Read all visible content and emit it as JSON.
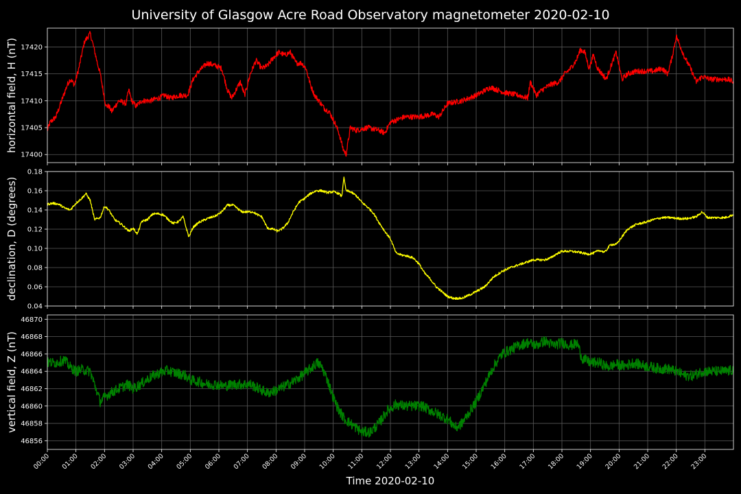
{
  "chart_data": {
    "type": "line",
    "title": "University of Glasgow Acre Road Observatory magnetometer 2020-02-10",
    "xlabel": "Time 2020-02-10",
    "x_ticks": [
      "00:00",
      "01:00",
      "02:00",
      "03:00",
      "04:00",
      "05:00",
      "06:00",
      "07:00",
      "08:00",
      "09:00",
      "10:00",
      "11:00",
      "12:00",
      "13:00",
      "14:00",
      "15:00",
      "16:00",
      "17:00",
      "18:00",
      "19:00",
      "20:00",
      "21:00",
      "22:00",
      "23:00"
    ],
    "xlim_hours": [
      0,
      24
    ],
    "grid": true,
    "panels": [
      {
        "ylabel": "horizontal field, H (nT)",
        "color": "#ff0000",
        "ylim": [
          17398.5,
          17423.5
        ],
        "yticks": [
          17400,
          17405,
          17410,
          17415,
          17420
        ],
        "ytick_labels": [
          "17400",
          "17405",
          "17410",
          "17415",
          "17420"
        ],
        "noise": 0.5,
        "series": [
          {
            "x": [
              0,
              0.1,
              0.3,
              0.5,
              0.7,
              0.8,
              0.95,
              1.1,
              1.3,
              1.5,
              1.62,
              1.75,
              1.85,
              1.95,
              2.05,
              2.15,
              2.25,
              2.5,
              2.75,
              2.85,
              2.95,
              3.1,
              3.3,
              3.6,
              3.9,
              4.1,
              4.3,
              4.6,
              4.9,
              5.1,
              5.3,
              5.6,
              5.9,
              6.1,
              6.3,
              6.45,
              6.6,
              6.75,
              6.9,
              7.1,
              7.3,
              7.5,
              7.7,
              7.9,
              8.1,
              8.3,
              8.5,
              8.7,
              8.9,
              9.05,
              9.2,
              9.35,
              9.5,
              9.7,
              9.85,
              10.05,
              10.2,
              10.35,
              10.45,
              10.6,
              10.8,
              11.2,
              11.6,
              11.8,
              12.0,
              12.5,
              13.0,
              13.5,
              13.7,
              14.0,
              14.5,
              15.0,
              15.5,
              16.0,
              16.5,
              16.8,
              16.9,
              17.1,
              17.3,
              17.6,
              17.9,
              18.1,
              18.3,
              18.5,
              18.65,
              18.8,
              18.95,
              19.1,
              19.25,
              19.4,
              19.55,
              19.75,
              19.9,
              20.1,
              20.3,
              20.6,
              20.9,
              21.2,
              21.5,
              21.7,
              21.85,
              22.0,
              22.15,
              22.3,
              22.5,
              22.7,
              22.9,
              23.2,
              23.5,
              23.8,
              24.0
            ],
            "y": [
              17404.5,
              17406,
              17407,
              17410,
              17413,
              17414,
              17413,
              17416,
              17421,
              17422.5,
              17420,
              17417,
              17415,
              17412,
              17409,
              17409,
              17408,
              17410,
              17409.5,
              17412,
              17410,
              17409,
              17410,
              17410,
              17410.5,
              17411,
              17410.5,
              17411,
              17411,
              17414,
              17415.5,
              17417,
              17416.5,
              17416,
              17412,
              17410.5,
              17412,
              17413.5,
              17411,
              17415,
              17417.5,
              17416,
              17416.5,
              17418,
              17419,
              17418.5,
              17419,
              17417,
              17417,
              17416,
              17413,
              17411,
              17410,
              17408.5,
              17408,
              17406,
              17404,
              17401,
              17400,
              17405,
              17404.5,
              17405,
              17404.5,
              17404,
              17406,
              17407,
              17407,
              17407.5,
              17407,
              17409.5,
              17410,
              17411,
              17412.5,
              17411.5,
              17411,
              17410.5,
              17413.5,
              17411,
              17412,
              17413,
              17413.5,
              17415,
              17416,
              17417.5,
              17419.5,
              17419,
              17416,
              17418.5,
              17416,
              17415,
              17414,
              17417,
              17419,
              17414,
              17415,
              17415.5,
              17415.5,
              17415.5,
              17416,
              17415,
              17418,
              17422,
              17420,
              17418,
              17416,
              17413.5,
              17414.5,
              17414,
              17414,
              17414,
              17413.5
            ]
          }
        ]
      },
      {
        "ylabel": "declination, D (degrees)",
        "color": "#ffff00",
        "ylim": [
          0.04,
          0.18
        ],
        "yticks": [
          0.04,
          0.06,
          0.08,
          0.1,
          0.12,
          0.14,
          0.16,
          0.18
        ],
        "ytick_labels": [
          "0.04",
          "0.06",
          "0.08",
          "0.10",
          "0.12",
          "0.14",
          "0.16",
          "0.18"
        ],
        "noise": 0.0012,
        "series": [
          {
            "x": [
              0,
              0.2,
              0.4,
              0.6,
              0.8,
              1.0,
              1.2,
              1.35,
              1.5,
              1.65,
              1.85,
              2.0,
              2.15,
              2.35,
              2.6,
              2.85,
              3.0,
              3.15,
              3.3,
              3.5,
              3.7,
              3.9,
              4.05,
              4.2,
              4.4,
              4.6,
              4.75,
              4.85,
              4.95,
              5.1,
              5.3,
              5.6,
              5.9,
              6.1,
              6.3,
              6.5,
              6.8,
              7.0,
              7.2,
              7.35,
              7.5,
              7.7,
              7.9,
              8.05,
              8.2,
              8.4,
              8.6,
              8.8,
              9.0,
              9.2,
              9.4,
              9.6,
              9.8,
              10.0,
              10.2,
              10.3,
              10.37,
              10.45,
              10.6,
              10.8,
              11.0,
              11.2,
              11.4,
              11.6,
              11.8,
              12.0,
              12.2,
              12.4,
              12.6,
              12.8,
              13.0,
              13.2,
              13.4,
              13.6,
              13.8,
              14.0,
              14.2,
              14.5,
              14.8,
              15.0,
              15.3,
              15.6,
              15.9,
              16.2,
              16.6,
              17.0,
              17.2,
              17.4,
              17.6,
              17.8,
              18.0,
              18.3,
              18.6,
              18.9,
              19.1,
              19.3,
              19.5,
              19.7,
              19.9,
              20.1,
              20.3,
              20.6,
              20.9,
              21.2,
              21.5,
              21.8,
              22.1,
              22.4,
              22.7,
              22.9,
              23.1,
              23.4,
              23.7,
              24.0
            ],
            "y": [
              0.146,
              0.147,
              0.146,
              0.142,
              0.14,
              0.147,
              0.152,
              0.157,
              0.15,
              0.13,
              0.132,
              0.144,
              0.14,
              0.13,
              0.125,
              0.118,
              0.121,
              0.115,
              0.128,
              0.13,
              0.136,
              0.136,
              0.135,
              0.131,
              0.126,
              0.128,
              0.133,
              0.122,
              0.112,
              0.122,
              0.127,
              0.131,
              0.134,
              0.138,
              0.145,
              0.145,
              0.138,
              0.138,
              0.138,
              0.135,
              0.133,
              0.121,
              0.12,
              0.118,
              0.12,
              0.126,
              0.138,
              0.148,
              0.152,
              0.157,
              0.16,
              0.16,
              0.158,
              0.159,
              0.157,
              0.154,
              0.174,
              0.16,
              0.159,
              0.155,
              0.148,
              0.143,
              0.137,
              0.127,
              0.118,
              0.11,
              0.095,
              0.093,
              0.092,
              0.09,
              0.084,
              0.074,
              0.068,
              0.06,
              0.055,
              0.05,
              0.048,
              0.048,
              0.052,
              0.055,
              0.06,
              0.07,
              0.076,
              0.08,
              0.084,
              0.088,
              0.088,
              0.088,
              0.09,
              0.094,
              0.097,
              0.097,
              0.096,
              0.094,
              0.095,
              0.098,
              0.096,
              0.104,
              0.104,
              0.112,
              0.12,
              0.125,
              0.127,
              0.13,
              0.132,
              0.132,
              0.131,
              0.131,
              0.133,
              0.138,
              0.132,
              0.132,
              0.132,
              0.135
            ]
          }
        ]
      },
      {
        "ylabel": "vertical field, Z (nT)",
        "color": "#008000",
        "ylim": [
          46855,
          46870.5
        ],
        "yticks": [
          46856,
          46858,
          46860,
          46862,
          46864,
          46866,
          46868,
          46870
        ],
        "ytick_labels": [
          "46856",
          "46858",
          "46860",
          "46862",
          "46864",
          "46866",
          "46868",
          "46870"
        ],
        "noise": 0.6,
        "series": [
          {
            "x": [
              0,
              0.3,
              0.6,
              0.8,
              1.0,
              1.2,
              1.5,
              1.7,
              1.85,
              2.0,
              2.2,
              2.5,
              2.8,
              3.0,
              3.3,
              3.6,
              3.9,
              4.2,
              4.5,
              4.8,
              5.0,
              5.3,
              5.6,
              5.9,
              6.2,
              6.5,
              6.8,
              7.1,
              7.4,
              7.7,
              8.0,
              8.3,
              8.6,
              8.9,
              9.2,
              9.45,
              9.6,
              9.8,
              10.0,
              10.2,
              10.4,
              10.6,
              10.8,
              11.0,
              11.3,
              11.6,
              11.9,
              12.2,
              12.5,
              12.8,
              13.1,
              13.4,
              13.7,
              14.0,
              14.3,
              14.5,
              14.7,
              15.0,
              15.3,
              15.6,
              15.9,
              16.2,
              16.5,
              16.8,
              17.1,
              17.4,
              17.7,
              18.0,
              18.3,
              18.55,
              18.7,
              19.0,
              19.3,
              19.6,
              19.9,
              20.2,
              20.5,
              20.8,
              21.1,
              21.4,
              21.7,
              22.0,
              22.3,
              22.6,
              22.9,
              23.2,
              23.5,
              23.8,
              24.0
            ],
            "y": [
              46865,
              46865,
              46865.3,
              46864.5,
              46864,
              46864.2,
              46864,
              46862,
              46860.5,
              46861,
              46861.5,
              46862,
              46862.5,
              46862,
              46862.6,
              46863.3,
              46863.8,
              46864.1,
              46863.8,
              46863.6,
              46863,
              46862.8,
              46862.5,
              46862.5,
              46862.3,
              46862.5,
              46862.5,
              46862.5,
              46862,
              46861.5,
              46861.8,
              46862.3,
              46862.8,
              46863.5,
              46864.3,
              46865,
              46864.5,
              46863,
              46861,
              46859.5,
              46858.5,
              46858,
              46857.5,
              46857,
              46857,
              46858,
              46859.5,
              46860.2,
              46860,
              46860,
              46860,
              46859.5,
              46859,
              46858.5,
              46857.5,
              46858,
              46859,
              46860.5,
              46862.5,
              46864.5,
              46866,
              46866.5,
              46867,
              46867.3,
              46867,
              46867.5,
              46867,
              46867.3,
              46867,
              46867.2,
              46865.5,
              46865,
              46865,
              46864.5,
              46864.8,
              46864.6,
              46865,
              46864.7,
              46864.5,
              46864.3,
              46864.3,
              46864,
              46863.5,
              46863.5,
              46864,
              46864,
              46864,
              46864,
              46864.2
            ]
          }
        ]
      }
    ]
  }
}
